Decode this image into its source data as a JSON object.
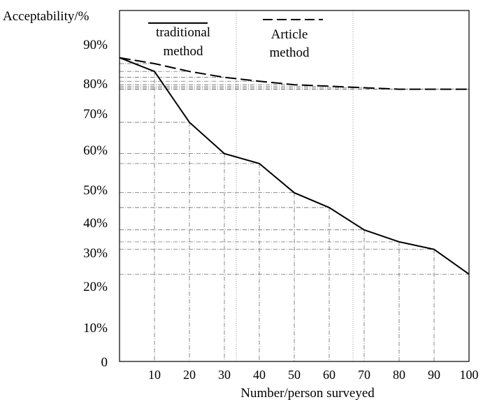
{
  "chart_data": {
    "type": "line",
    "ylabel": "Acceptability/%",
    "xlabel": "Number/person surveyed",
    "x_ticks": [
      "10",
      "20",
      "30",
      "40",
      "50",
      "60",
      "70",
      "80",
      "90",
      "100"
    ],
    "y_ticks": [
      "0",
      "10%",
      "20%",
      "30%",
      "40%",
      "50%",
      "60%",
      "70%",
      "80%",
      "90%"
    ],
    "xlim": [
      0,
      100
    ],
    "grid": "dash-dot reference lines to each data point",
    "legend_position": "top",
    "series": [
      {
        "name": "traditional method",
        "name_lines": [
          "traditional",
          "method"
        ],
        "line_style": "solid",
        "color": "#000000",
        "x": [
          0,
          10,
          20,
          30,
          40,
          50,
          60,
          70,
          80,
          90,
          100
        ],
        "y": [
          86.5,
          83.0,
          67.5,
          59.0,
          56.5,
          49.0,
          44.5,
          37.5,
          33.5,
          31.0,
          23.5
        ]
      },
      {
        "name": "Article method",
        "name_lines": [
          "Article",
          "method"
        ],
        "line_style": "dashed",
        "color": "#000000",
        "x": [
          0,
          10,
          20,
          30,
          40,
          50,
          60,
          70,
          80,
          90,
          100
        ],
        "y": [
          86.5,
          85.0,
          83.0,
          81.5,
          80.5,
          79.5,
          79.0,
          78.5,
          78.0,
          78.0,
          78.0
        ]
      }
    ]
  }
}
